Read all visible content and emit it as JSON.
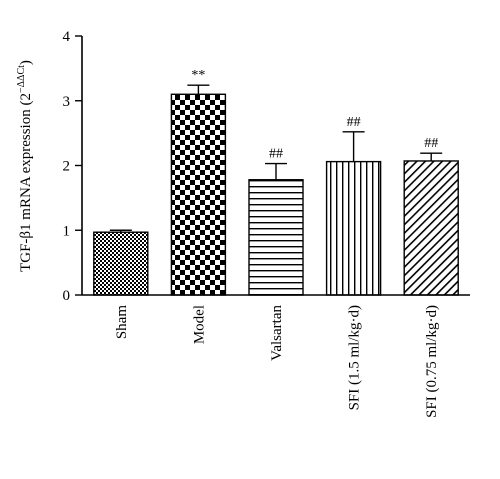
{
  "chart_data": {
    "type": "bar",
    "categories": [
      "Sham",
      "Model",
      "Valsartan",
      "SFI (1.5 ml/kg·d)",
      "SFI (0.75 ml/kg·d)"
    ],
    "values": [
      0.97,
      3.1,
      1.78,
      2.06,
      2.07
    ],
    "error": [
      0.03,
      0.14,
      0.25,
      0.46,
      0.12
    ],
    "significance": [
      "",
      "**",
      "##",
      "##",
      "##"
    ],
    "patterns": [
      "fine-check",
      "checker",
      "horizontal-lines",
      "vertical-lines",
      "diagonal-lines"
    ],
    "ylabel_main": "TGF-β1 mRNA expression (2",
    "ylabel_sup": "−ΔΔCt",
    "ylabel_end": ")",
    "xlabel": "",
    "ylim": [
      0,
      4
    ],
    "yticks": [
      "0",
      "1",
      "2",
      "3",
      "4"
    ],
    "grid": false,
    "colors": {
      "ink": "#000000",
      "background": "#ffffff"
    }
  }
}
